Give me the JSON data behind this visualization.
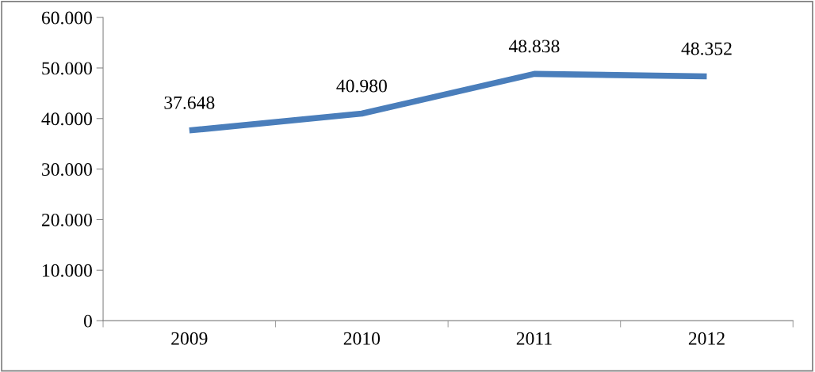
{
  "chart_data": {
    "type": "line",
    "categories": [
      "2009",
      "2010",
      "2011",
      "2012"
    ],
    "series": [
      {
        "color": "#4a7ebb",
        "values": [
          37648,
          40980,
          48838,
          48352
        ],
        "value_labels": [
          "37.648",
          "40.980",
          "48.838",
          "48.352"
        ]
      }
    ],
    "ylim": [
      0,
      60000
    ],
    "yticks": [
      0,
      {
        "value": 10000,
        "label": "10.000"
      },
      {
        "value": 20000,
        "label": "20.000"
      },
      {
        "value": 30000,
        "label": "30.000"
      },
      {
        "value": 40000,
        "label": "40.000"
      },
      {
        "value": 50000,
        "label": "50.000"
      },
      {
        "value": 60000,
        "label": "60.000"
      }
    ],
    "grid": false,
    "legend": false,
    "marker": "none",
    "line_style": "solid"
  }
}
